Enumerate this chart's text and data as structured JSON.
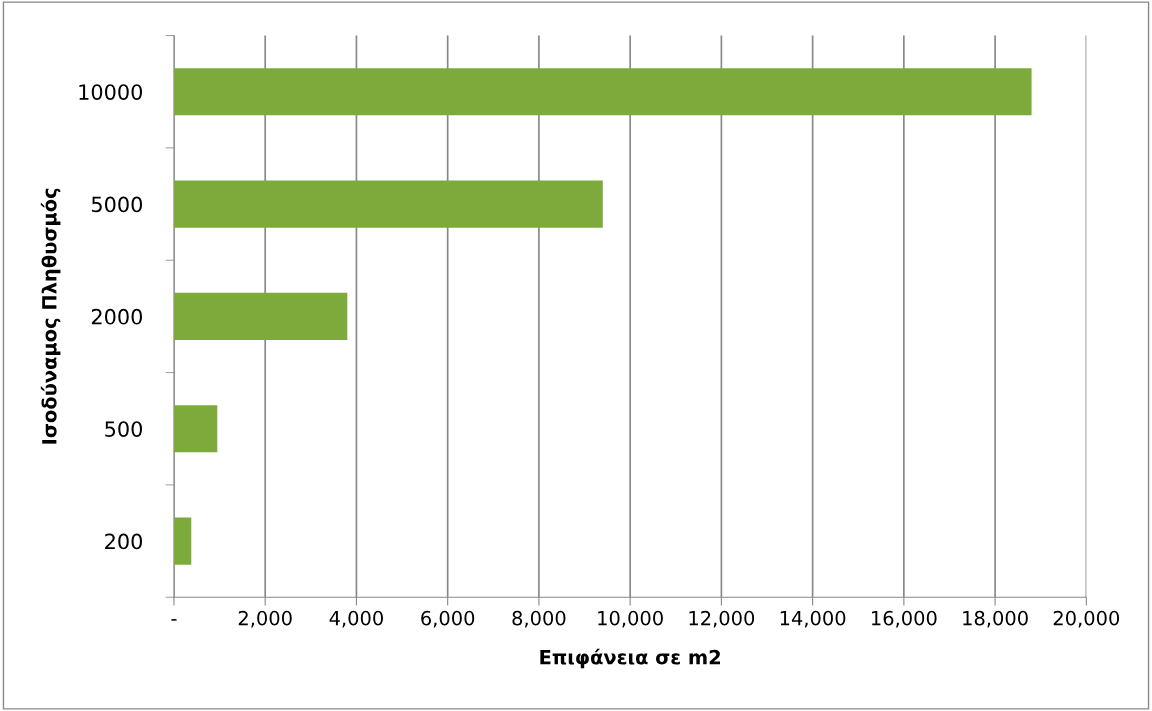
{
  "chart_data": {
    "type": "bar",
    "orientation": "horizontal",
    "xlabel": "Επιφάνεια σε m2",
    "ylabel": "Ισοδύναμος Πληθυσμός",
    "categories": [
      "10000",
      "5000",
      "2000",
      "500",
      "200"
    ],
    "values": [
      18800,
      9400,
      3800,
      950,
      380
    ],
    "color": "#7cab3c",
    "xlim": [
      0,
      20000
    ],
    "xticks": [
      {
        "value": 0,
        "label": "-"
      },
      {
        "value": 2000,
        "label": "2,000"
      },
      {
        "value": 4000,
        "label": "4,000"
      },
      {
        "value": 6000,
        "label": "6,000"
      },
      {
        "value": 8000,
        "label": "8,000"
      },
      {
        "value": 10000,
        "label": "10,000"
      },
      {
        "value": 12000,
        "label": "12,000"
      },
      {
        "value": 14000,
        "label": "14,000"
      },
      {
        "value": 16000,
        "label": "16,000"
      },
      {
        "value": 18000,
        "label": "18,000"
      },
      {
        "value": 20000,
        "label": "20,000"
      }
    ],
    "grid": "x",
    "legend": false
  }
}
